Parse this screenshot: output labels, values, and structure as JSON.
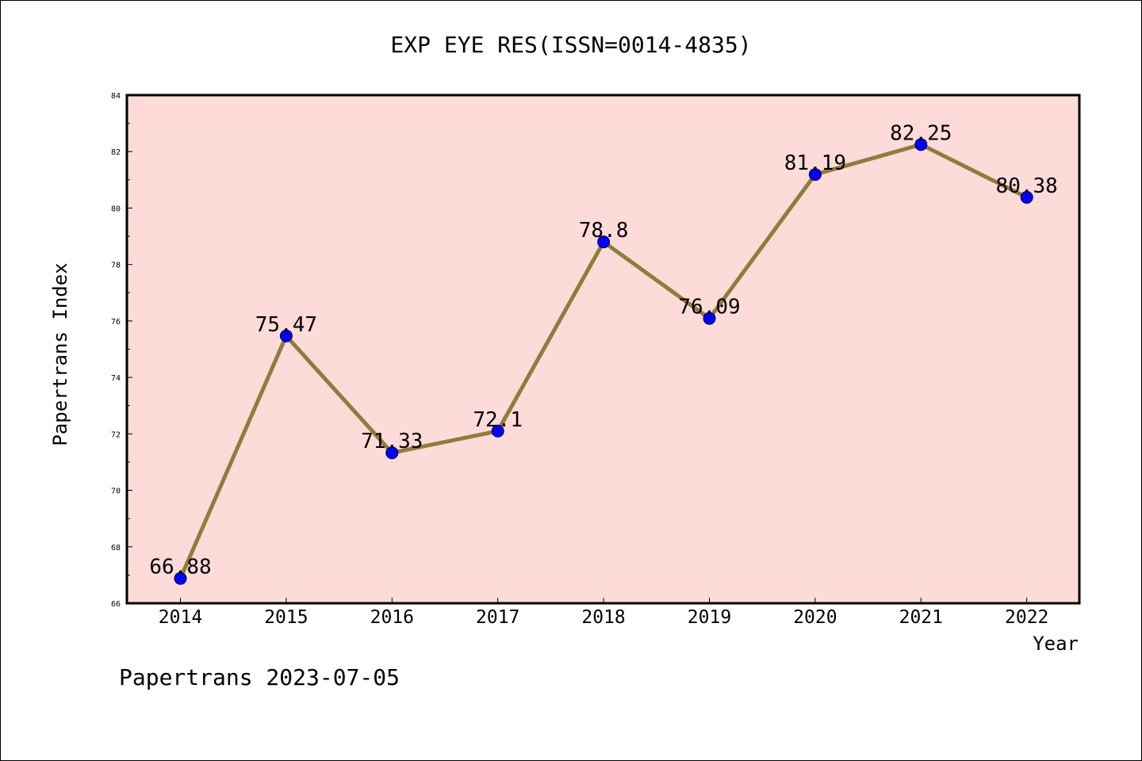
{
  "chart_data": {
    "type": "line",
    "title": "EXP EYE RES(ISSN=0014-4835)",
    "xlabel": "Year",
    "ylabel": "Papertrans Index",
    "categories": [
      "2014",
      "2015",
      "2016",
      "2017",
      "2018",
      "2019",
      "2020",
      "2021",
      "2022"
    ],
    "series": [
      {
        "values": [
          66.88,
          75.47,
          71.33,
          72.1,
          78.8,
          76.09,
          81.19,
          82.25,
          80.38
        ],
        "data_labels": [
          "66.88",
          "75.47",
          "71.33",
          "72.1",
          "78.8",
          "76.09",
          "81.19",
          "82.25",
          "80.38"
        ]
      }
    ],
    "ylim": [
      66,
      84
    ],
    "yticks": [
      "66",
      "68",
      "70",
      "72",
      "74",
      "76",
      "78",
      "80",
      "82",
      "84"
    ],
    "grid": false,
    "colors": {
      "plot_background": "#fddbd9",
      "line": "#8f7d3a",
      "marker": "#0000ff"
    }
  },
  "footer": "Papertrans 2023-07-05"
}
